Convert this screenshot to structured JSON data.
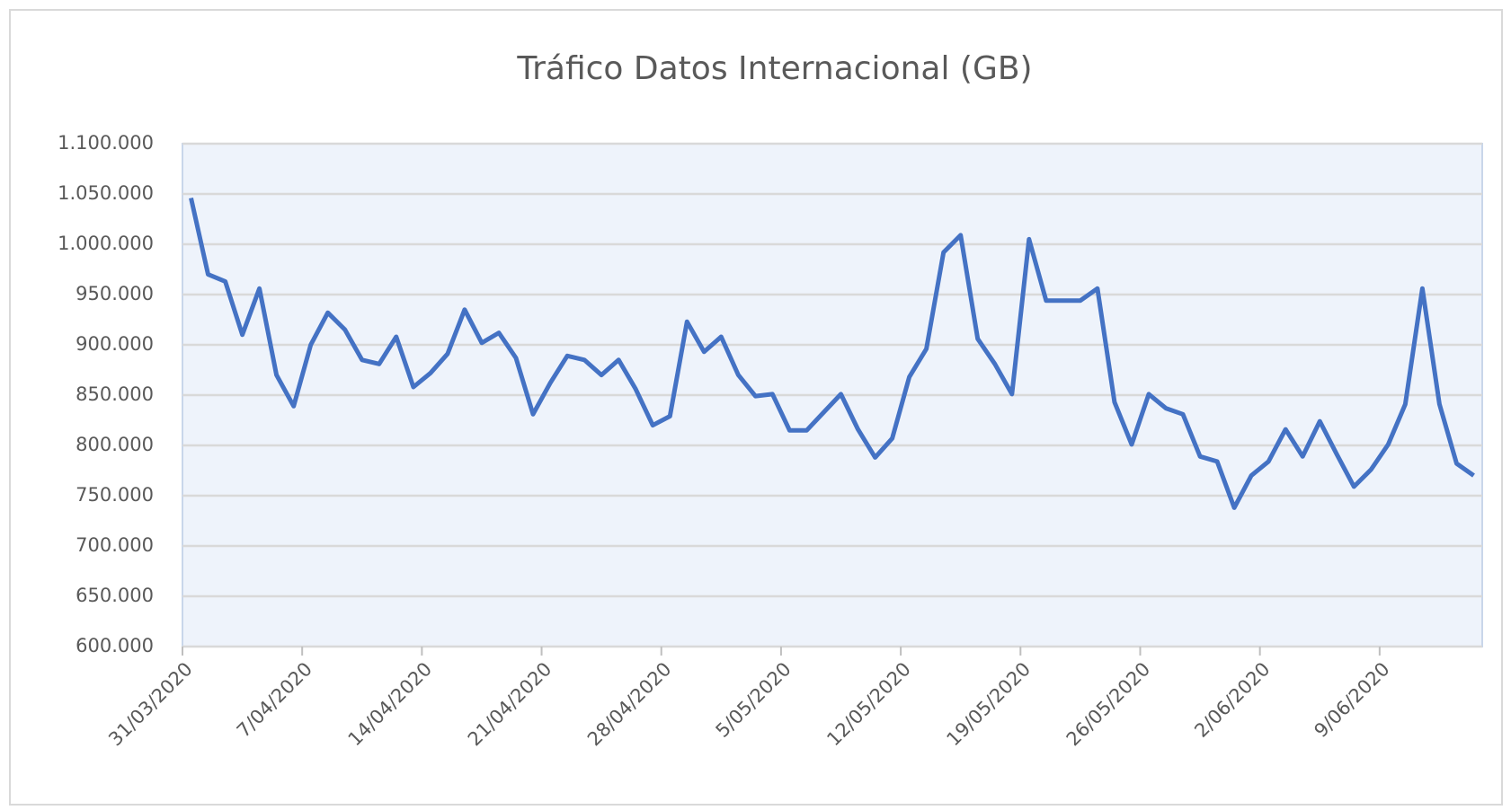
{
  "chart_data": {
    "type": "line",
    "title": "Tráfico Datos  Internacional (GB)",
    "categories": [
      "31/03/2020",
      null,
      null,
      null,
      null,
      null,
      null,
      "7/04/2020",
      null,
      null,
      null,
      null,
      null,
      null,
      "14/04/2020",
      null,
      null,
      null,
      null,
      null,
      null,
      "21/04/2020",
      null,
      null,
      null,
      null,
      null,
      null,
      "28/04/2020",
      null,
      null,
      null,
      null,
      null,
      null,
      "5/05/2020",
      null,
      null,
      null,
      null,
      null,
      null,
      "12/05/2020",
      null,
      null,
      null,
      null,
      null,
      null,
      "19/05/2020",
      null,
      null,
      null,
      null,
      null,
      null,
      "26/05/2020",
      null,
      null,
      null,
      null,
      null,
      null,
      "2/06/2020",
      null,
      null,
      null,
      null,
      null,
      null,
      "9/06/2020",
      null,
      null,
      null,
      null,
      null
    ],
    "values": [
      1046000,
      970000,
      963000,
      910000,
      956000,
      870000,
      839000,
      900000,
      932000,
      915000,
      885000,
      881000,
      908000,
      858000,
      872000,
      891000,
      935000,
      902000,
      912000,
      887000,
      831000,
      862000,
      889000,
      885000,
      870000,
      885000,
      856000,
      820000,
      829000,
      923000,
      893000,
      908000,
      870000,
      849000,
      851000,
      815000,
      815000,
      833000,
      851000,
      816000,
      788000,
      807000,
      868000,
      896000,
      992000,
      1009000,
      906000,
      881000,
      851000,
      1005000,
      944000,
      944000,
      944000,
      956000,
      843000,
      801000,
      851000,
      837000,
      831000,
      789000,
      784000,
      738000,
      770000,
      784000,
      816000,
      789000,
      824000,
      791000,
      759000,
      776000,
      801000,
      841000,
      956000,
      841000,
      782000,
      770000
    ],
    "color": "#4472c4",
    "ylim": [
      600000,
      1100000
    ],
    "yticks": [
      {
        "value": 600000,
        "label": "600.000"
      },
      {
        "value": 650000,
        "label": "650.000"
      },
      {
        "value": 700000,
        "label": "700.000"
      },
      {
        "value": 750000,
        "label": "750.000"
      },
      {
        "value": 800000,
        "label": "800.000"
      },
      {
        "value": 850000,
        "label": "850.000"
      },
      {
        "value": 900000,
        "label": "900.000"
      },
      {
        "value": 950000,
        "label": "950.000"
      },
      {
        "value": 1000000,
        "label": "1.000.000"
      },
      {
        "value": 1050000,
        "label": "1.050.000"
      },
      {
        "value": 1100000,
        "label": "1.100.000"
      }
    ],
    "grid": true
  }
}
